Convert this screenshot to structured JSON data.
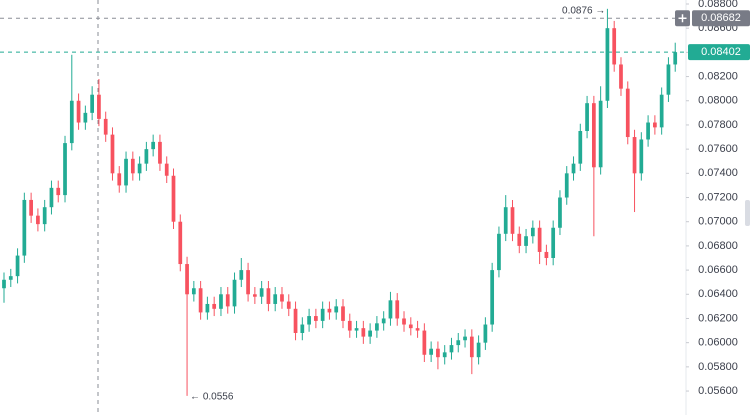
{
  "chart_data": {
    "type": "candlestick",
    "colors": {
      "up": "#22ab94",
      "down": "#f7525f"
    },
    "ylim": [
      0.05402,
      0.08833
    ],
    "yticks": [
      {
        "value": 0.088,
        "label": "0.08800"
      },
      {
        "value": 0.086,
        "label": "0.08600"
      },
      {
        "value": 0.084,
        "label": "0.08400"
      },
      {
        "value": 0.082,
        "label": "0.08200"
      },
      {
        "value": 0.08,
        "label": "0.08000"
      },
      {
        "value": 0.078,
        "label": "0.07800"
      },
      {
        "value": 0.076,
        "label": "0.07600"
      },
      {
        "value": 0.074,
        "label": "0.07400"
      },
      {
        "value": 0.072,
        "label": "0.07200"
      },
      {
        "value": 0.07,
        "label": "0.07000"
      },
      {
        "value": 0.068,
        "label": "0.06800"
      },
      {
        "value": 0.066,
        "label": "0.06600"
      },
      {
        "value": 0.064,
        "label": "0.06400"
      },
      {
        "value": 0.062,
        "label": "0.06200"
      },
      {
        "value": 0.06,
        "label": "0.06000"
      },
      {
        "value": 0.058,
        "label": "0.05800"
      },
      {
        "value": 0.056,
        "label": "0.05600"
      }
    ],
    "grid": false,
    "crosshair_price": {
      "value": 0.08682,
      "label": "0.08682"
    },
    "last_price": {
      "value": 0.08402,
      "label": "0.08402"
    },
    "high_annotation": "0.0876 →",
    "low_annotation": "← 0.0556",
    "open": [
      0.0645,
      0.0652,
      0.0655,
      0.0672,
      0.0718,
      0.0705,
      0.0698,
      0.0712,
      0.0728,
      0.0722,
      0.0765,
      0.08,
      0.0782,
      0.079,
      0.0805,
      0.0785,
      0.0772,
      0.074,
      0.073,
      0.0752,
      0.074,
      0.0748,
      0.076,
      0.0766,
      0.0748,
      0.0738,
      0.07,
      0.0665,
      0.064,
      0.0645,
      0.0625,
      0.0632,
      0.0628,
      0.064,
      0.063,
      0.0652,
      0.066,
      0.064,
      0.0638,
      0.0645,
      0.0632,
      0.064,
      0.0634,
      0.0628,
      0.0608,
      0.0615,
      0.0622,
      0.0618,
      0.0628,
      0.0625,
      0.063,
      0.0618,
      0.061,
      0.0612,
      0.0605,
      0.061,
      0.0616,
      0.062,
      0.0635,
      0.062,
      0.0615,
      0.0612,
      0.061,
      0.059,
      0.0595,
      0.0588,
      0.0592,
      0.0598,
      0.0602,
      0.0605,
      0.0588,
      0.06,
      0.0615,
      0.066,
      0.069,
      0.0712,
      0.069,
      0.068,
      0.0688,
      0.0695,
      0.0675,
      0.067,
      0.0695,
      0.072,
      0.074,
      0.0748,
      0.0775,
      0.0798,
      0.0745,
      0.08,
      0.086,
      0.083,
      0.081,
      0.077,
      0.074,
      0.0768,
      0.0782,
      0.0778,
      0.0805,
      0.083
    ],
    "high": [
      0.0658,
      0.0661,
      0.0678,
      0.0724,
      0.0724,
      0.0711,
      0.0718,
      0.0734,
      0.0734,
      0.0771,
      0.0838,
      0.0806,
      0.0796,
      0.0812,
      0.0818,
      0.0791,
      0.0778,
      0.0746,
      0.0758,
      0.0758,
      0.0754,
      0.0766,
      0.0772,
      0.0772,
      0.0754,
      0.0744,
      0.0706,
      0.0671,
      0.0651,
      0.0651,
      0.0638,
      0.0638,
      0.0646,
      0.0646,
      0.0658,
      0.067,
      0.0666,
      0.0646,
      0.0651,
      0.0651,
      0.0646,
      0.0646,
      0.064,
      0.0634,
      0.0621,
      0.0628,
      0.0628,
      0.0634,
      0.0634,
      0.0636,
      0.0636,
      0.0624,
      0.0618,
      0.0618,
      0.0616,
      0.0622,
      0.0626,
      0.0642,
      0.0641,
      0.0626,
      0.0621,
      0.0618,
      0.0616,
      0.0601,
      0.0601,
      0.0598,
      0.0604,
      0.0608,
      0.0611,
      0.0611,
      0.0606,
      0.0621,
      0.0666,
      0.0696,
      0.0722,
      0.0718,
      0.0696,
      0.0694,
      0.0701,
      0.0701,
      0.0681,
      0.0701,
      0.0726,
      0.0746,
      0.0754,
      0.0781,
      0.0804,
      0.0804,
      0.0812,
      0.0876,
      0.0866,
      0.0836,
      0.0816,
      0.0776,
      0.0774,
      0.0788,
      0.0788,
      0.0811,
      0.0836,
      0.0848
    ],
    "low": [
      0.0633,
      0.0646,
      0.0649,
      0.0666,
      0.0699,
      0.0692,
      0.0692,
      0.0706,
      0.0716,
      0.0716,
      0.0759,
      0.0776,
      0.0776,
      0.0784,
      0.0779,
      0.0766,
      0.0734,
      0.0724,
      0.0724,
      0.0734,
      0.0734,
      0.0742,
      0.0754,
      0.0742,
      0.0732,
      0.0694,
      0.0659,
      0.0556,
      0.0634,
      0.0619,
      0.0619,
      0.0622,
      0.0622,
      0.0624,
      0.0624,
      0.0646,
      0.0634,
      0.0632,
      0.0632,
      0.0626,
      0.0626,
      0.0628,
      0.0622,
      0.0602,
      0.0602,
      0.0609,
      0.0612,
      0.0612,
      0.0619,
      0.0619,
      0.0612,
      0.0604,
      0.0604,
      0.0599,
      0.0599,
      0.0604,
      0.061,
      0.0614,
      0.0614,
      0.0609,
      0.0606,
      0.0604,
      0.0584,
      0.0584,
      0.0578,
      0.0582,
      0.0586,
      0.0592,
      0.0596,
      0.0574,
      0.0582,
      0.0594,
      0.0609,
      0.0654,
      0.0684,
      0.0684,
      0.0674,
      0.0674,
      0.0682,
      0.0665,
      0.0664,
      0.0664,
      0.0689,
      0.0714,
      0.0734,
      0.0742,
      0.0769,
      0.0688,
      0.0739,
      0.0794,
      0.0824,
      0.0804,
      0.0764,
      0.0708,
      0.0734,
      0.0762,
      0.0772,
      0.0772,
      0.0799,
      0.0824
    ],
    "close": [
      0.0652,
      0.0655,
      0.0672,
      0.0718,
      0.0705,
      0.0698,
      0.0712,
      0.0728,
      0.0722,
      0.0765,
      0.08,
      0.0782,
      0.079,
      0.0805,
      0.0785,
      0.0772,
      0.074,
      0.073,
      0.0752,
      0.074,
      0.0748,
      0.076,
      0.0766,
      0.0748,
      0.0738,
      0.07,
      0.0665,
      0.064,
      0.0645,
      0.0625,
      0.0632,
      0.0628,
      0.064,
      0.063,
      0.0652,
      0.066,
      0.064,
      0.0638,
      0.0645,
      0.0632,
      0.064,
      0.0634,
      0.0628,
      0.0608,
      0.0615,
      0.0622,
      0.0618,
      0.0628,
      0.0625,
      0.063,
      0.0618,
      0.061,
      0.0612,
      0.0605,
      0.061,
      0.0616,
      0.062,
      0.0635,
      0.062,
      0.0615,
      0.0612,
      0.061,
      0.059,
      0.0595,
      0.0588,
      0.0592,
      0.0598,
      0.0602,
      0.0605,
      0.0588,
      0.06,
      0.0615,
      0.066,
      0.069,
      0.0712,
      0.069,
      0.068,
      0.0688,
      0.0695,
      0.0675,
      0.067,
      0.0695,
      0.072,
      0.074,
      0.0748,
      0.0775,
      0.0798,
      0.0745,
      0.08,
      0.086,
      0.083,
      0.081,
      0.077,
      0.074,
      0.0768,
      0.0782,
      0.0778,
      0.0805,
      0.083,
      0.08402
    ]
  }
}
